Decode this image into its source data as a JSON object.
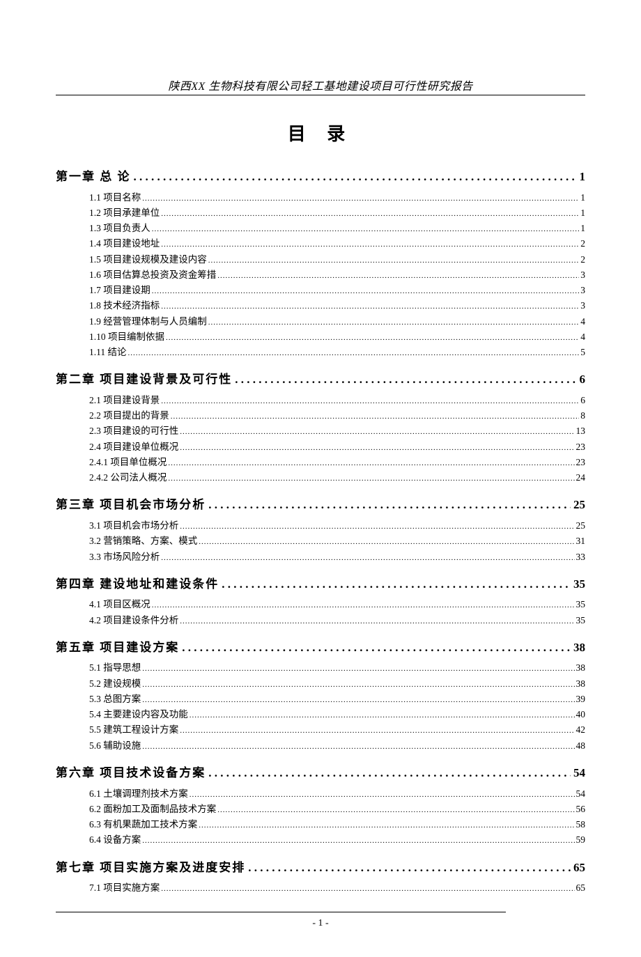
{
  "header": "陕西XX 生物科技有限公司轻工基地建设项目可行性研究报告",
  "title": "目  录",
  "footer_page": "- 1 -",
  "chapters": [
    {
      "label": "第一章 总 论",
      "page": "1",
      "items": [
        {
          "label": "1.1 项目名称",
          "page": "1"
        },
        {
          "label": "1.2 项目承建单位",
          "page": "1"
        },
        {
          "label": "1.3 项目负责人",
          "page": "1"
        },
        {
          "label": "1.4 项目建设地址",
          "page": "2"
        },
        {
          "label": "1.5 项目建设规模及建设内容",
          "page": "2"
        },
        {
          "label": "1.6 项目估算总投资及资金筹措",
          "page": "3"
        },
        {
          "label": "1.7 项目建设期",
          "page": "3"
        },
        {
          "label": "1.8 技术经济指标",
          "page": "3"
        },
        {
          "label": "1.9 经营管理体制与人员编制",
          "page": "4"
        },
        {
          "label": "1.10 项目编制依据",
          "page": "4"
        },
        {
          "label": "1.11 结论",
          "page": "5"
        }
      ]
    },
    {
      "label": "第二章 项目建设背景及可行性",
      "page": "6",
      "items": [
        {
          "label": "2.1 项目建设背景",
          "page": "6"
        },
        {
          "label": "2.2 项目提出的背景",
          "page": "8"
        },
        {
          "label": "2.3 项目建设的可行性",
          "page": "13"
        },
        {
          "label": "2.4 项目建设单位概况",
          "page": "23"
        },
        {
          "label": "2.4.1 项目单位概况",
          "page": "23"
        },
        {
          "label": "2.4.2 公司法人概况",
          "page": "24"
        }
      ]
    },
    {
      "label": "第三章 项目机会市场分析",
      "page": "25",
      "items": [
        {
          "label": "3.1 项目机会市场分析",
          "page": "25"
        },
        {
          "label": "3.2 营销策略、方案、模式",
          "page": "31"
        },
        {
          "label": "3.3 市场风险分析",
          "page": "33"
        }
      ]
    },
    {
      "label": "第四章 建设地址和建设条件",
      "page": "35",
      "items": [
        {
          "label": "4.1 项目区概况",
          "page": "35"
        },
        {
          "label": "4.2 项目建设条件分析",
          "page": "35"
        }
      ]
    },
    {
      "label": "第五章 项目建设方案",
      "page": "38",
      "items": [
        {
          "label": "5.1 指导思想",
          "page": "38"
        },
        {
          "label": "5.2 建设规模",
          "page": "38"
        },
        {
          "label": "5.3 总图方案",
          "page": "39"
        },
        {
          "label": "5.4 主要建设内容及功能",
          "page": "40"
        },
        {
          "label": "5.5 建筑工程设计方案",
          "page": "42"
        },
        {
          "label": "5.6 辅助设施",
          "page": "48"
        }
      ]
    },
    {
      "label": "第六章   项目技术设备方案",
      "page": "54",
      "items": [
        {
          "label": "6.1 土壤调理剂技术方案",
          "page": "54"
        },
        {
          "label": "6.2 面粉加工及面制品技术方案",
          "page": "56"
        },
        {
          "label": "6.3 有机果蔬加工技术方案",
          "page": "58"
        },
        {
          "label": "6.4 设备方案",
          "page": "59"
        }
      ]
    },
    {
      "label": "第七章 项目实施方案及进度安排",
      "page": "65",
      "items": [
        {
          "label": "7.1 项目实施方案",
          "page": "65"
        }
      ]
    }
  ]
}
